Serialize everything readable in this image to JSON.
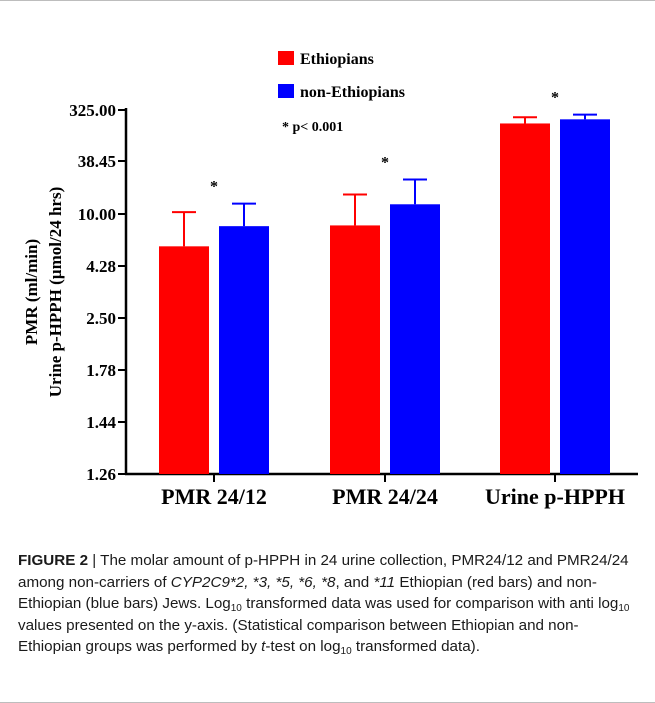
{
  "colors": {
    "ethiopians": "#ff0000",
    "non_ethiopians": "#0000ff",
    "axis": "#000000"
  },
  "chart_data": {
    "type": "bar",
    "title": "",
    "ylabel_lines": [
      "PMR (ml/min)",
      "Urine p-HPPH (µmol/24 hrs)"
    ],
    "xlabel": "",
    "categories": [
      "PMR 24/12",
      "PMR 24/24",
      "Urine p-HPPH"
    ],
    "y_tick_labels": [
      "1.26",
      "1.44",
      "1.78",
      "2.50",
      "4.28",
      "10.00",
      "38.45",
      "325.00"
    ],
    "y_scale": "custom anti-log (ticks evenly spaced)",
    "series": [
      {
        "name": "Ethiopians",
        "color": "#ff0000",
        "values": [
          5.9,
          8.3,
          185.0
        ],
        "error_upper": [
          10.5,
          16.4,
          240.0
        ]
      },
      {
        "name": "non-Ethiopians",
        "color": "#0000ff",
        "values": [
          8.2,
          12.8,
          220.0
        ],
        "error_upper": [
          13.0,
          24.0,
          268.0
        ]
      }
    ],
    "significance_markers": [
      "*",
      "*",
      "*"
    ],
    "legend_note": "*  p< 0.001",
    "legend_position": "top-center",
    "grid": false
  },
  "caption": {
    "figure_label": "FIGURE 2",
    "separator": " | ",
    "text_1": "The molar amount of p-HPPH in 24 urine collection, PMR24/12 and PMR24/24 among non-carriers of ",
    "gene_alleles": "CYP2C9*2, *3, *5, *6, *8",
    "text_2": ", and ",
    "allele_11": "*11",
    "text_3": " Ethiopian (red bars) and non-Ethiopian (blue bars) Jews. Log",
    "sub_10_a": "10",
    "text_4": " transformed data was used for comparison with anti log",
    "sub_10_b": "10",
    "text_5": " values presented on the y-axis. (Statistical comparison between Ethiopian and non-Ethiopian groups was performed by ",
    "t_italic": "t",
    "text_6": "-test on log",
    "sub_10_c": "10",
    "text_7": " transformed data)."
  }
}
